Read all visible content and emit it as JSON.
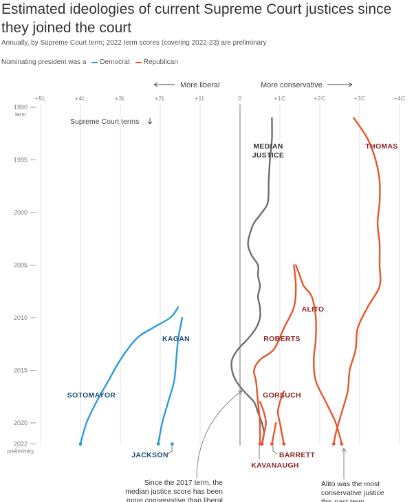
{
  "header": {
    "title": "Estimated ideologies of current Supreme Court justices since they joined the court",
    "subtitle": "Annually, by Supreme Court term; 2022 term scores (covering 2022-23) are preliminary",
    "legend_intro": "Nominating president was a",
    "legend": [
      {
        "label": "Democrat",
        "color": "#2b9bd8"
      },
      {
        "label": "Republican",
        "color": "#e8542b"
      }
    ]
  },
  "chart_data": {
    "type": "line",
    "title": "Estimated ideologies of current Supreme Court justices since they joined the court",
    "subtitle": "Annually, by Supreme Court term; 2022 term scores (covering 2022-23) are preliminary",
    "x_ticks": [
      "+5L",
      "+4L",
      "+3L",
      "+2L",
      "+1L",
      "0",
      "+1C",
      "+2C",
      "+3C",
      "+4C"
    ],
    "x_tick_values": [
      -5,
      -4,
      -3,
      -2,
      -1,
      0,
      1,
      2,
      3,
      4
    ],
    "xlim": [
      -5,
      4
    ],
    "y_ticks": [
      1990,
      1995,
      2000,
      2005,
      2010,
      2015,
      2020,
      2022
    ],
    "y_tick_sublabels": {
      "1990": "term",
      "2022": "preliminary"
    },
    "ylim": [
      1990,
      2022
    ],
    "y_axis_label": "Supreme Court terms",
    "direction_labels": {
      "left": "More liberal",
      "right": "More conservative"
    },
    "colors": {
      "democrat": "#2b9bd8",
      "republican": "#e8542b",
      "median": "#6e6e6e"
    },
    "series": [
      {
        "name": "MEDIAN JUSTICE",
        "party": "median",
        "points": [
          [
            0.8,
            1991
          ],
          [
            0.8,
            1993
          ],
          [
            0.75,
            1995
          ],
          [
            0.72,
            1997
          ],
          [
            0.7,
            1999
          ],
          [
            0.55,
            2000
          ],
          [
            0.35,
            2001
          ],
          [
            0.25,
            2002
          ],
          [
            0.2,
            2003
          ],
          [
            0.28,
            2004
          ],
          [
            0.45,
            2005
          ],
          [
            0.45,
            2006
          ],
          [
            0.5,
            2007
          ],
          [
            0.45,
            2008
          ],
          [
            0.5,
            2009
          ],
          [
            0.5,
            2010
          ],
          [
            0.4,
            2011
          ],
          [
            0.2,
            2012
          ],
          [
            -0.05,
            2013
          ],
          [
            -0.2,
            2014
          ],
          [
            -0.2,
            2015
          ],
          [
            -0.1,
            2016
          ],
          [
            0.1,
            2017
          ],
          [
            0.35,
            2018
          ],
          [
            0.45,
            2019
          ],
          [
            0.55,
            2020
          ],
          [
            0.6,
            2021
          ],
          [
            0.55,
            2022
          ]
        ]
      },
      {
        "name": "THOMAS",
        "party": "republican",
        "points": [
          [
            2.85,
            1991
          ],
          [
            3.2,
            1993
          ],
          [
            3.4,
            1995
          ],
          [
            3.5,
            1997
          ],
          [
            3.5,
            1999
          ],
          [
            3.45,
            2001
          ],
          [
            3.5,
            2003
          ],
          [
            3.5,
            2005
          ],
          [
            3.5,
            2007
          ],
          [
            3.2,
            2009
          ],
          [
            2.95,
            2011
          ],
          [
            2.9,
            2013
          ],
          [
            2.75,
            2015
          ],
          [
            2.7,
            2017
          ],
          [
            2.55,
            2019
          ],
          [
            2.4,
            2021
          ],
          [
            2.35,
            2022
          ]
        ]
      },
      {
        "name": "ALITO",
        "party": "republican",
        "points": [
          [
            1.4,
            2005
          ],
          [
            1.5,
            2006
          ],
          [
            1.6,
            2007
          ],
          [
            1.8,
            2008
          ],
          [
            1.9,
            2010
          ],
          [
            1.9,
            2012
          ],
          [
            1.85,
            2014
          ],
          [
            1.9,
            2016
          ],
          [
            2.15,
            2018
          ],
          [
            2.4,
            2020
          ],
          [
            2.55,
            2022
          ]
        ]
      },
      {
        "name": "ROBERTS",
        "party": "republican",
        "points": [
          [
            1.35,
            2005
          ],
          [
            1.4,
            2007
          ],
          [
            1.35,
            2009
          ],
          [
            1.1,
            2011
          ],
          [
            0.85,
            2013
          ],
          [
            0.5,
            2014
          ],
          [
            0.35,
            2015
          ],
          [
            0.4,
            2016
          ],
          [
            0.45,
            2018
          ],
          [
            0.5,
            2020
          ],
          [
            0.5,
            2022
          ]
        ]
      },
      {
        "name": "GORSUCH",
        "party": "republican",
        "points": [
          [
            1.1,
            2017
          ],
          [
            1.0,
            2018
          ],
          [
            0.95,
            2019
          ],
          [
            1.0,
            2020
          ],
          [
            1.05,
            2021
          ],
          [
            1.1,
            2022
          ]
        ]
      },
      {
        "name": "KAVANAUGH",
        "party": "republican",
        "points": [
          [
            0.5,
            2018
          ],
          [
            0.6,
            2019
          ],
          [
            0.65,
            2020
          ],
          [
            0.6,
            2021
          ],
          [
            0.55,
            2022
          ]
        ]
      },
      {
        "name": "BARRETT",
        "party": "republican",
        "points": [
          [
            0.9,
            2020
          ],
          [
            0.85,
            2021
          ],
          [
            0.8,
            2022
          ]
        ]
      },
      {
        "name": "KAGAN",
        "party": "democrat",
        "points": [
          [
            -1.45,
            2010
          ],
          [
            -1.5,
            2011
          ],
          [
            -1.55,
            2012
          ],
          [
            -1.6,
            2014
          ],
          [
            -1.65,
            2016
          ],
          [
            -1.8,
            2018
          ],
          [
            -1.95,
            2020
          ],
          [
            -2.05,
            2022
          ]
        ]
      },
      {
        "name": "SOTOMAYOR",
        "party": "democrat",
        "points": [
          [
            -1.55,
            2009
          ],
          [
            -1.75,
            2010
          ],
          [
            -2.2,
            2011
          ],
          [
            -2.6,
            2012
          ],
          [
            -3.0,
            2014
          ],
          [
            -3.3,
            2016
          ],
          [
            -3.6,
            2018
          ],
          [
            -3.85,
            2020
          ],
          [
            -4.0,
            2022
          ]
        ]
      },
      {
        "name": "JACKSON",
        "party": "democrat",
        "points": [
          [
            -1.7,
            2022
          ]
        ]
      }
    ],
    "annotations": [
      {
        "name": "median-note",
        "lines": [
          "Since the 2017 term, the",
          "median justice score has been",
          "more conservative than liberal"
        ]
      },
      {
        "name": "alito-note",
        "lines": [
          "Alito was the most",
          "conservative justice",
          "this past term"
        ]
      }
    ]
  }
}
